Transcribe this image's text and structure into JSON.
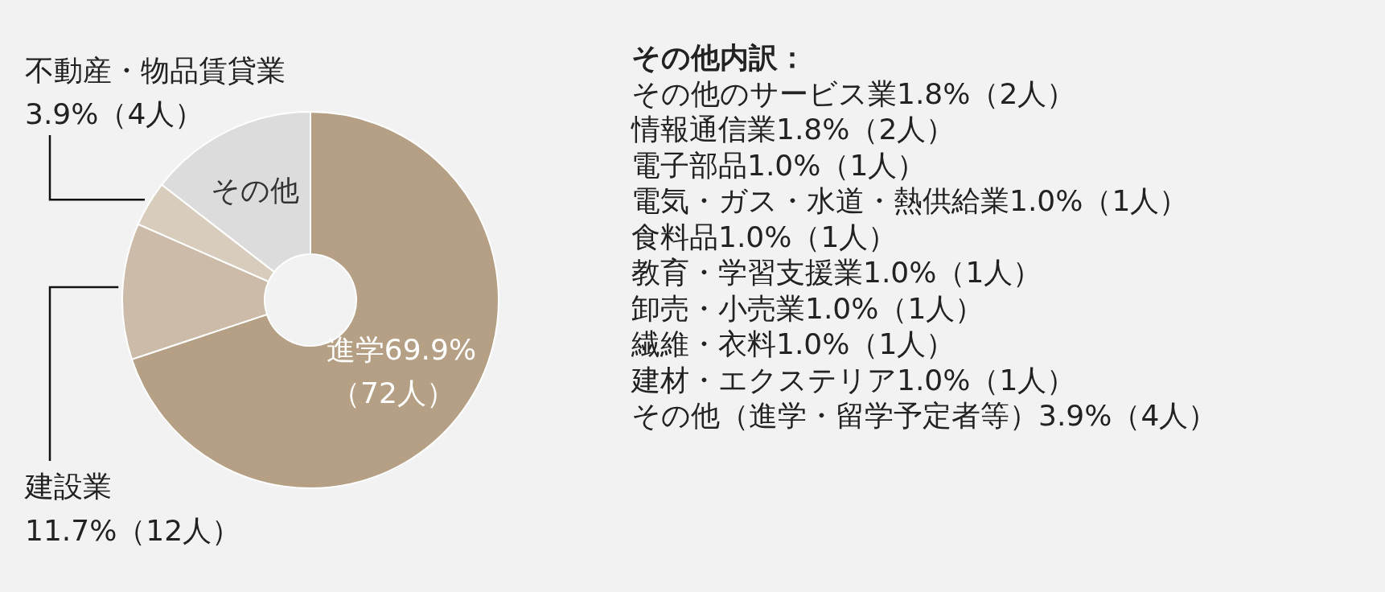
{
  "chart_data": {
    "type": "donut",
    "categories": [
      "進学",
      "建設業",
      "不動産・物品賃貸業",
      "その他"
    ],
    "values": [
      69.9,
      11.7,
      3.9,
      14.5
    ],
    "colors": [
      "#b5a085",
      "#cbbba8",
      "#d8ccbd",
      "#dcdcdc"
    ],
    "value_labels": [
      "69.9%（72人）",
      "11.7%（12人）",
      "3.9%（4人）",
      null
    ],
    "annotations": [
      "その他内訳：",
      "その他のサービス業1.8%（2人）",
      "情報通信業1.8%（2人）",
      "電子部品1.0%（1人）",
      "電気・ガス・水道・熱供給業1.0%（1人）",
      "食料品1.0%（1人）",
      "教育・学習支援業1.0%（1人）",
      "卸売・小売業1.0%（1人）",
      "繊維・衣料1.0%（1人）",
      "建材・エクステリア1.0%（1人）",
      "その他（進学・留学予定者等）3.9%（4人）"
    ]
  }
}
